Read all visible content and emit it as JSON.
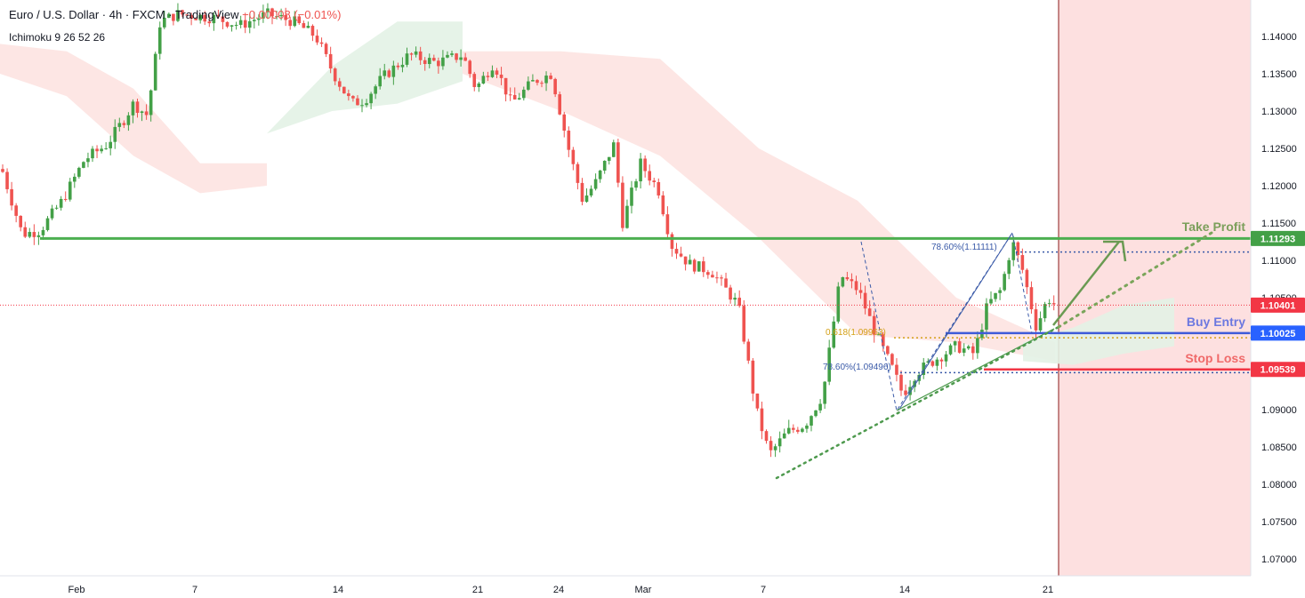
{
  "header": {
    "symbol": "Euro / U.S. Dollar",
    "interval": "4h",
    "exchange": "FXCM",
    "platform": "TradingView",
    "change": "−0.00008 (−0.01%)",
    "indicator": "Ichimoku 9 26 52 26"
  },
  "colors": {
    "up": "#26a69a",
    "up_body": "#43a047",
    "down": "#ef5350",
    "take_profit": "#4caf50",
    "take_profit_label": "#7c9f5b",
    "buy_entry": "#3f5bd9",
    "buy_entry_label": "#6c78e0",
    "stop_loss": "#f23645",
    "stop_loss_label": "#f06a6a",
    "fib": "#3a5aa8",
    "fib_618": "#d4a017",
    "trendline": "#4e9a4e",
    "projection_zone": "#fde0e0",
    "current_price": "#f23645"
  },
  "annotations": {
    "take_profit": "Take Profit",
    "buy_entry": "Buy Entry",
    "stop_loss": "Stop Loss",
    "fib_786_high": "78.60%(1.11111)",
    "fib_618": "0.618(1.09963)",
    "fib_786_low": "78.60%(1.09496)"
  },
  "chart_data": {
    "type": "candlestick",
    "symbol": "Euro / U.S. Dollar",
    "interval": "4h",
    "x_ticks": [
      "Feb",
      "7",
      "14",
      "21",
      "24",
      "Mar",
      "7",
      "14",
      "21"
    ],
    "y_ticks": [
      "1.14000",
      "1.13500",
      "1.13000",
      "1.12500",
      "1.12000",
      "1.11500",
      "1.11000",
      "1.10500",
      "1.10000",
      "1.09500",
      "1.09000",
      "1.08500",
      "1.08000",
      "1.07500",
      "1.07000"
    ],
    "ylim": [
      1.0665,
      1.1435
    ],
    "levels": [
      {
        "name": "Take Profit",
        "value": 1.11293,
        "label": "1.11293"
      },
      {
        "name": "Current Price",
        "value": 1.10401,
        "label": "1.10401"
      },
      {
        "name": "Buy Entry",
        "value": 1.10025,
        "label": "1.10025"
      },
      {
        "name": "Stop Loss",
        "value": 1.09539,
        "label": "1.09539"
      }
    ],
    "fibonacci": [
      {
        "label": "78.60%(1.11111)",
        "value": 1.11111
      },
      {
        "label": "0.618(1.09963)",
        "value": 1.09963
      },
      {
        "label": "78.60%(1.09496)",
        "value": 1.09496
      }
    ],
    "grid": false,
    "price_waypoints": [
      [
        0,
        1.123
      ],
      [
        25,
        1.1135
      ],
      [
        45,
        1.114
      ],
      [
        70,
        1.118
      ],
      [
        95,
        1.1235
      ],
      [
        120,
        1.1255
      ],
      [
        140,
        1.129
      ],
      [
        150,
        1.131
      ],
      [
        165,
        1.1295
      ],
      [
        172,
        1.1345
      ],
      [
        180,
        1.142
      ],
      [
        200,
        1.143
      ],
      [
        240,
        1.1425
      ],
      [
        270,
        1.1415
      ],
      [
        300,
        1.143
      ],
      [
        330,
        1.142
      ],
      [
        355,
        1.14
      ],
      [
        375,
        1.135
      ],
      [
        395,
        1.131
      ],
      [
        410,
        1.1315
      ],
      [
        430,
        1.1345
      ],
      [
        460,
        1.1375
      ],
      [
        490,
        1.1365
      ],
      [
        520,
        1.1375
      ],
      [
        535,
        1.133
      ],
      [
        555,
        1.1365
      ],
      [
        575,
        1.131
      ],
      [
        600,
        1.134
      ],
      [
        620,
        1.135
      ],
      [
        640,
        1.1245
      ],
      [
        655,
        1.118
      ],
      [
        670,
        1.1205
      ],
      [
        690,
        1.1255
      ],
      [
        700,
        1.115
      ],
      [
        720,
        1.123
      ],
      [
        740,
        1.1195
      ],
      [
        755,
        1.112
      ],
      [
        775,
        1.1095
      ],
      [
        800,
        1.1085
      ],
      [
        830,
        1.104
      ],
      [
        850,
        1.09
      ],
      [
        865,
        1.084
      ],
      [
        885,
        1.087
      ],
      [
        905,
        1.088
      ],
      [
        925,
        1.092
      ],
      [
        945,
        1.108
      ],
      [
        965,
        1.106
      ],
      [
        985,
        1.1
      ],
      [
        1005,
        1.095
      ],
      [
        1015,
        1.092
      ],
      [
        1030,
        1.095
      ],
      [
        1055,
        1.097
      ],
      [
        1075,
        1.0985
      ],
      [
        1095,
        1.0975
      ],
      [
        1110,
        1.104
      ],
      [
        1125,
        1.106
      ],
      [
        1138,
        1.1125
      ],
      [
        1150,
        1.1085
      ],
      [
        1165,
        1.101
      ],
      [
        1178,
        1.105
      ],
      [
        1186,
        1.104
      ]
    ],
    "ichimoku_cloud": [
      {
        "x0": 0,
        "x1": 300,
        "top": [
          1.139,
          1.138,
          1.133,
          1.123,
          1.123
        ],
        "bottom": [
          1.135,
          1.132,
          1.124,
          1.119,
          1.12
        ],
        "trend": "bearish"
      },
      {
        "x0": 300,
        "x1": 520,
        "top": [
          1.127,
          1.136,
          1.142,
          1.142
        ],
        "bottom": [
          1.127,
          1.13,
          1.131,
          1.134
        ],
        "trend": "bullish"
      },
      {
        "x0": 520,
        "x1": 1186,
        "top": [
          1.138,
          1.138,
          1.137,
          1.125,
          1.118,
          1.105,
          1.099
        ],
        "bottom": [
          1.135,
          1.13,
          1.124,
          1.113,
          1.1,
          1.099,
          1.0965
        ],
        "trend": "bearish"
      },
      {
        "x0": 1150,
        "x1": 1320,
        "top": [
          1.099,
          1.101,
          1.104,
          1.105
        ],
        "bottom": [
          1.0965,
          1.096,
          1.0975,
          1.0985
        ],
        "trend": "bullish"
      }
    ]
  }
}
